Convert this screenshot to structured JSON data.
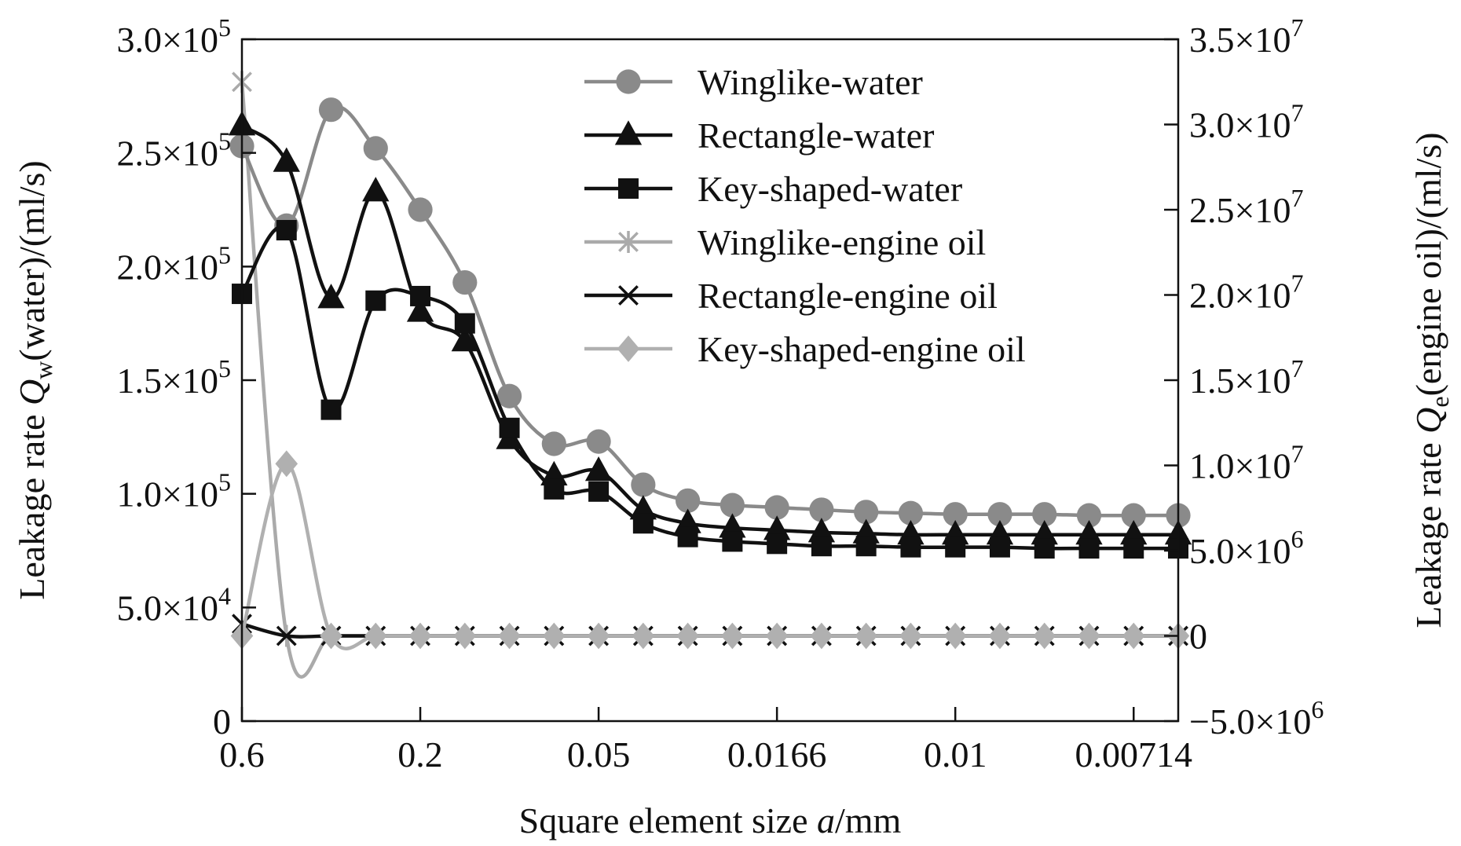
{
  "chart_data": {
    "type": "line",
    "xlabel": {
      "prefix": "Square element size ",
      "italic": "a",
      "suffix": "/mm"
    },
    "ylabel_left": {
      "prefix": "Leakage rate ",
      "italic": "Q",
      "sub": "w",
      "suffix": "(water)/(ml/s)"
    },
    "ylabel_right": {
      "prefix": "Leakage rate ",
      "italic": "Q",
      "sub": "e",
      "suffix": "(engine oil)/(ml/s)"
    },
    "x_tick_labels": [
      "0.6",
      "0.2",
      "0.05",
      "0.0166",
      "0.01",
      "0.00714"
    ],
    "x_tick_indices": [
      0,
      4,
      8,
      12,
      16,
      20
    ],
    "y_left": {
      "ylim": [
        0,
        300000
      ],
      "ticks": [
        {
          "value": 0,
          "text": "0",
          "exp": ""
        },
        {
          "value": 50000,
          "text": "5.0×10",
          "exp": "4"
        },
        {
          "value": 100000,
          "text": "1.0×10",
          "exp": "5"
        },
        {
          "value": 150000,
          "text": "1.5×10",
          "exp": "5"
        },
        {
          "value": 200000,
          "text": "2.0×10",
          "exp": "5"
        },
        {
          "value": 250000,
          "text": "2.5×10",
          "exp": "5"
        },
        {
          "value": 300000,
          "text": "3.0×10",
          "exp": "5"
        }
      ]
    },
    "y_right": {
      "ylim": [
        -5000000,
        35000000
      ],
      "ticks": [
        {
          "value": -5000000,
          "text": "−5.0×10",
          "exp": "6"
        },
        {
          "value": 0,
          "text": "0",
          "exp": ""
        },
        {
          "value": 5000000,
          "text": "5.0×10",
          "exp": "6"
        },
        {
          "value": 10000000,
          "text": "1.0×10",
          "exp": "7"
        },
        {
          "value": 15000000,
          "text": "1.5×10",
          "exp": "7"
        },
        {
          "value": 20000000,
          "text": "2.0×10",
          "exp": "7"
        },
        {
          "value": 25000000,
          "text": "2.5×10",
          "exp": "7"
        },
        {
          "value": 30000000,
          "text": "3.0×10",
          "exp": "7"
        },
        {
          "value": 35000000,
          "text": "3.5×10",
          "exp": "7"
        }
      ]
    },
    "legend_position": "top-right",
    "series": [
      {
        "name": "Winglike-water",
        "axis": "left",
        "marker": "circle",
        "color": "#8a8a8a",
        "values": [
          253000,
          218000,
          269000,
          252000,
          225000,
          193000,
          143000,
          122000,
          123000,
          104000,
          97000,
          95000,
          94000,
          93000,
          92000,
          91500,
          91000,
          91000,
          91000,
          90500,
          90500,
          90500
        ]
      },
      {
        "name": "Rectangle-water",
        "axis": "left",
        "marker": "triangle",
        "color": "#111111",
        "values": [
          262000,
          246000,
          186000,
          233000,
          180000,
          167000,
          124000,
          108000,
          110000,
          93000,
          87000,
          85000,
          84000,
          83000,
          82500,
          82000,
          82000,
          82000,
          82000,
          82000,
          82000,
          82000
        ]
      },
      {
        "name": "Key-shaped-water",
        "axis": "left",
        "marker": "square",
        "color": "#111111",
        "values": [
          188000,
          216000,
          137000,
          185000,
          187000,
          175000,
          129000,
          102000,
          101000,
          87000,
          81000,
          79000,
          78000,
          77000,
          77000,
          76500,
          76500,
          76500,
          76000,
          76000,
          76000,
          76000
        ]
      },
      {
        "name": "Winglike-engine oil",
        "axis": "right",
        "marker": "asterisk",
        "color": "#aaaaaa",
        "values": [
          32500000,
          0,
          0,
          0,
          0,
          0,
          0,
          0,
          0,
          0,
          0,
          0,
          0,
          0,
          0,
          0,
          0,
          0,
          0,
          0,
          0,
          0
        ]
      },
      {
        "name": "Rectangle-engine oil",
        "axis": "right",
        "marker": "x",
        "color": "#111111",
        "values": [
          700000,
          0,
          0,
          0,
          0,
          0,
          0,
          0,
          0,
          0,
          0,
          0,
          0,
          0,
          0,
          0,
          0,
          0,
          0,
          0,
          0,
          0
        ]
      },
      {
        "name": "Key-shaped-engine oil",
        "axis": "right",
        "marker": "diamond",
        "color": "#b0b0b0",
        "values": [
          0,
          10100000,
          0,
          0,
          0,
          0,
          0,
          0,
          0,
          0,
          0,
          0,
          0,
          0,
          0,
          0,
          0,
          0,
          0,
          0,
          0,
          0
        ]
      }
    ]
  }
}
